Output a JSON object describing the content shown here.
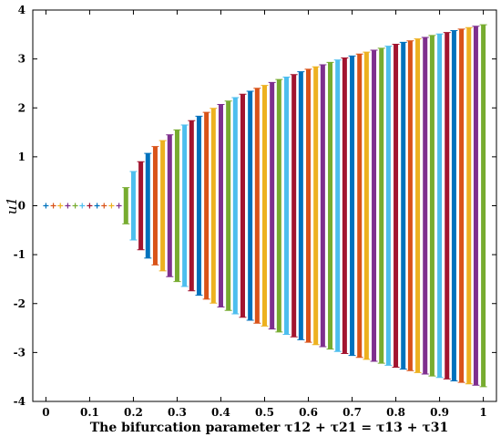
{
  "chart_data": {
    "type": "scatter",
    "title": "",
    "xlabel": "The bifurcation parameter τ12 + τ21 = τ13 + τ31",
    "ylabel": "u1",
    "xlim": [
      -0.03,
      1.03
    ],
    "ylim": [
      -4,
      4
    ],
    "grid": false,
    "xticks": [
      "0",
      "0.1",
      "0.2",
      "0.3",
      "0.4",
      "0.5",
      "0.6",
      "0.7",
      "0.8",
      "0.9",
      "1"
    ],
    "xtick_values": [
      0,
      0.1,
      0.2,
      0.3,
      0.4,
      0.5,
      0.6,
      0.7,
      0.8,
      0.9,
      1
    ],
    "yticks": [
      "4",
      "3",
      "2",
      "1",
      "0",
      "-1",
      "-2",
      "-3",
      "-4"
    ],
    "ytick_values": [
      4,
      3,
      2,
      1,
      0,
      -1,
      -2,
      -3,
      -4
    ],
    "marker": "+",
    "bifurcation_point": 0.175,
    "x": [
      0,
      0.017,
      0.033,
      0.05,
      0.067,
      0.083,
      0.1,
      0.117,
      0.133,
      0.15,
      0.167,
      0.183,
      0.2,
      0.217,
      0.233,
      0.25,
      0.267,
      0.283,
      0.3,
      0.317,
      0.333,
      0.35,
      0.367,
      0.383,
      0.4,
      0.417,
      0.433,
      0.45,
      0.467,
      0.483,
      0.5,
      0.517,
      0.533,
      0.55,
      0.567,
      0.583,
      0.6,
      0.617,
      0.633,
      0.65,
      0.667,
      0.683,
      0.7,
      0.717,
      0.733,
      0.75,
      0.767,
      0.783,
      0.8,
      0.817,
      0.833,
      0.85,
      0.867,
      0.883,
      0.9,
      0.917,
      0.933,
      0.95,
      0.967,
      0.983,
      1
    ],
    "ymax": [
      0,
      0,
      0,
      0,
      0,
      0,
      0,
      0,
      0,
      0,
      0,
      0.37,
      0.7,
      0.9,
      1.07,
      1.21,
      1.33,
      1.45,
      1.55,
      1.65,
      1.74,
      1.83,
      1.91,
      1.99,
      2.07,
      2.14,
      2.21,
      2.28,
      2.34,
      2.4,
      2.46,
      2.52,
      2.58,
      2.63,
      2.68,
      2.74,
      2.79,
      2.84,
      2.88,
      2.93,
      2.98,
      3.02,
      3.06,
      3.1,
      3.14,
      3.18,
      3.22,
      3.26,
      3.3,
      3.34,
      3.37,
      3.41,
      3.44,
      3.48,
      3.51,
      3.54,
      3.58,
      3.61,
      3.64,
      3.67,
      3.7
    ],
    "series_colors": [
      "#0072BD",
      "#D95319",
      "#EDB120",
      "#7E2F8E",
      "#77AC30",
      "#4DBEEE",
      "#A2142F"
    ]
  }
}
